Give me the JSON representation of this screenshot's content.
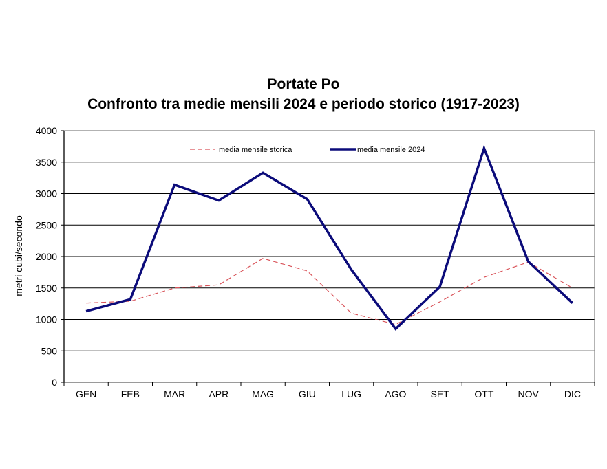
{
  "chart": {
    "title_line1": "Portate Po",
    "title_line2": "Confronto  tra medie  mensili  2024 e periodo  storico  (1917-2023)",
    "ylabel": "metri cubi/secondo",
    "legend": {
      "historical": "media mensile storica",
      "current": "media mensile 2024"
    },
    "colors": {
      "historical": "#d9545a",
      "current": "#0b0b7a",
      "grid": "#000000"
    }
  },
  "chart_data": {
    "type": "line",
    "title": "Portate Po — Confronto tra medie mensili 2024 e periodo storico (1917-2023)",
    "xlabel": "",
    "ylabel": "metri cubi/secondo",
    "ylim": [
      0,
      4000
    ],
    "yticks": [
      0,
      500,
      1000,
      1500,
      2000,
      2500,
      3000,
      3500,
      4000
    ],
    "grid": true,
    "legend_position": "top inside",
    "categories": [
      "GEN",
      "FEB",
      "MAR",
      "APR",
      "MAG",
      "GIU",
      "LUG",
      "AGO",
      "SET",
      "OTT",
      "NOV",
      "DIC"
    ],
    "series": [
      {
        "name": "media mensile storica",
        "style": "dashed",
        "color": "#d9545a",
        "values": [
          1260,
          1290,
          1500,
          1550,
          1970,
          1770,
          1100,
          920,
          1280,
          1670,
          1910,
          1500
        ]
      },
      {
        "name": "media mensile 2024",
        "style": "solid",
        "color": "#0b0b7a",
        "values": [
          1130,
          1320,
          3140,
          2890,
          3330,
          2910,
          1790,
          850,
          1520,
          3720,
          1920,
          1260
        ]
      }
    ]
  }
}
